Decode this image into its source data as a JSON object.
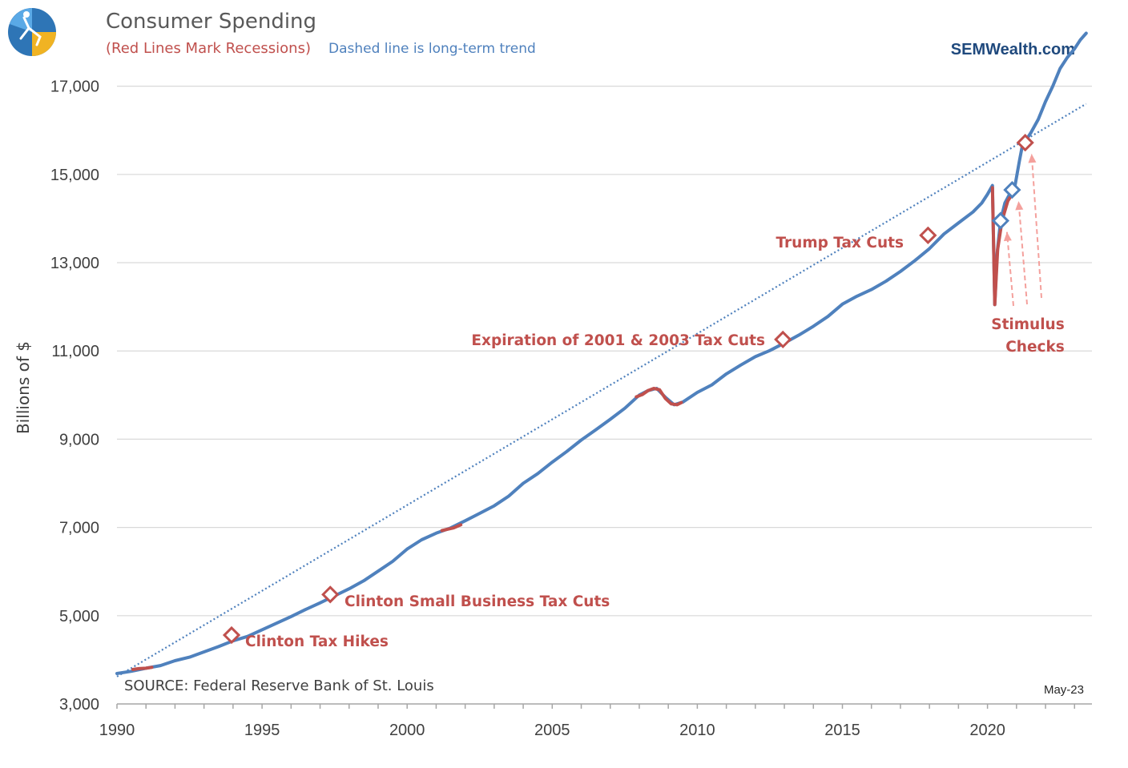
{
  "header": {
    "title": "Consumer Spending",
    "subtitle_red": "(Red Lines Mark Recessions)",
    "subtitle_blue": "Dashed line is long-term trend",
    "brand": "SEMWealth.com"
  },
  "footer": {
    "source": "SOURCE:  Federal Reserve Bank of St. Louis",
    "date": "May-23"
  },
  "colors": {
    "spending": "#4f81bd",
    "recession": "#c0504d",
    "trend": "#4f81bd",
    "arrows": "#f4a09c",
    "grid": "#d9d9d9"
  },
  "chart_data": {
    "type": "line",
    "title": "Consumer Spending",
    "ylabel": "Billions of $",
    "xlim": [
      1990,
      2023.6
    ],
    "ylim": [
      3000,
      18300
    ],
    "yticks": [
      3000,
      5000,
      7000,
      9000,
      11000,
      13000,
      15000,
      17000
    ],
    "ytick_labels": [
      "3,000",
      "5,000",
      "7,000",
      "9,000",
      "11,000",
      "13,000",
      "15,000",
      "17,000"
    ],
    "xticks": [
      1990,
      1995,
      2000,
      2005,
      2010,
      2015,
      2020
    ],
    "xtick_labels": [
      "1990",
      "1995",
      "2000",
      "2005",
      "2010",
      "2015",
      "2020"
    ],
    "grid": true,
    "series": [
      {
        "name": "Consumer Spending",
        "x": [
          1990.0,
          1990.5,
          1991.0,
          1991.5,
          1992.0,
          1992.5,
          1993.0,
          1993.5,
          1994.0,
          1994.5,
          1995.0,
          1995.5,
          1996.0,
          1996.5,
          1997.0,
          1997.5,
          1998.0,
          1998.5,
          1999.0,
          1999.5,
          2000.0,
          2000.5,
          2001.0,
          2001.5,
          2002.0,
          2002.5,
          2003.0,
          2003.5,
          2004.0,
          2004.5,
          2005.0,
          2005.5,
          2006.0,
          2006.5,
          2007.0,
          2007.5,
          2008.0,
          2008.3,
          2008.6,
          2008.9,
          2009.2,
          2009.5,
          2010.0,
          2010.5,
          2011.0,
          2011.5,
          2012.0,
          2012.5,
          2013.0,
          2013.5,
          2014.0,
          2014.5,
          2015.0,
          2015.5,
          2016.0,
          2016.5,
          2017.0,
          2017.5,
          2018.0,
          2018.5,
          2019.0,
          2019.5,
          2019.8,
          2020.0,
          2020.17,
          2020.25,
          2020.33,
          2020.45,
          2020.6,
          2020.8,
          2020.95,
          2021.1,
          2021.2,
          2021.3,
          2021.5,
          2021.75,
          2022.0,
          2022.25,
          2022.5,
          2022.75,
          2023.0,
          2023.2,
          2023.4
        ],
        "y": [
          3690,
          3740,
          3810,
          3870,
          3980,
          4060,
          4180,
          4300,
          4430,
          4530,
          4680,
          4830,
          4980,
          5140,
          5290,
          5450,
          5610,
          5790,
          6010,
          6230,
          6510,
          6720,
          6870,
          6990,
          7150,
          7320,
          7490,
          7710,
          8000,
          8220,
          8480,
          8720,
          8980,
          9210,
          9450,
          9700,
          10000,
          10100,
          10150,
          9950,
          9780,
          9840,
          10060,
          10230,
          10480,
          10680,
          10870,
          11010,
          11180,
          11360,
          11560,
          11780,
          12060,
          12240,
          12390,
          12580,
          12800,
          13050,
          13320,
          13650,
          13900,
          14150,
          14350,
          14550,
          14750,
          12050,
          13200,
          13950,
          14350,
          14600,
          14750,
          15300,
          15650,
          15750,
          15950,
          16250,
          16650,
          17000,
          17400,
          17650,
          17850,
          18050,
          18200
        ]
      },
      {
        "name": "Recession 1990-91",
        "x": [
          1990.55,
          1990.75,
          1991.0,
          1991.2
        ],
        "y": [
          3780,
          3800,
          3810,
          3830
        ]
      },
      {
        "name": "Recession 2001",
        "x": [
          2001.2,
          2001.4,
          2001.6,
          2001.85
        ],
        "y": [
          6930,
          6960,
          6990,
          7060
        ]
      },
      {
        "name": "Recession 2007-09",
        "x": [
          2007.9,
          2008.1,
          2008.3,
          2008.5,
          2008.7,
          2008.9,
          2009.1,
          2009.3,
          2009.45
        ],
        "y": [
          9960,
          10010,
          10100,
          10150,
          10120,
          9920,
          9800,
          9780,
          9830
        ]
      },
      {
        "name": "Recession 2020",
        "x": [
          2020.17,
          2020.25,
          2020.35,
          2020.5,
          2020.7,
          2020.85
        ],
        "y": [
          14700,
          12050,
          13300,
          13950,
          14400,
          14550
        ]
      }
    ],
    "trend": {
      "x": [
        1990.0,
        2023.4
      ],
      "y": [
        3620,
        16600
      ]
    },
    "annotations": [
      {
        "label": "Clinton Tax Hikes",
        "x": 1993.95,
        "y": 4560
      },
      {
        "label": "Clinton Small Business Tax Cuts",
        "x": 1997.35,
        "y": 5480
      },
      {
        "label": "Expiration of 2001 & 2003 Tax Cuts",
        "x": 2012.95,
        "y": 11260
      },
      {
        "label": "Trump Tax Cuts",
        "x": 2017.95,
        "y": 13620
      }
    ],
    "stimulus_points": [
      {
        "x": 2020.45,
        "y": 13950,
        "kind": "blue"
      },
      {
        "x": 2020.85,
        "y": 14650,
        "kind": "blue"
      },
      {
        "x": 2021.3,
        "y": 15720,
        "kind": "red"
      }
    ],
    "stimulus_label": [
      "Stimulus",
      "Checks"
    ]
  }
}
